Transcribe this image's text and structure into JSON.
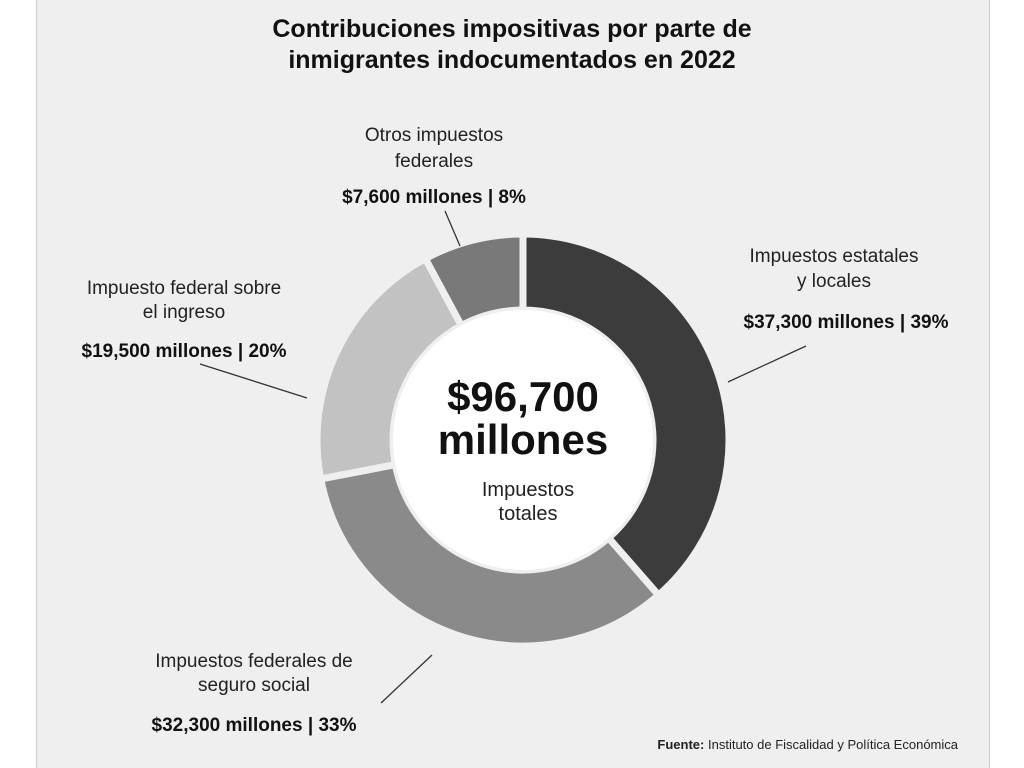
{
  "chart_data": {
    "type": "pie",
    "title_lines": [
      "Contribuciones impositivas por parte de",
      "inmigrantes indocumentados en 2022"
    ],
    "center": {
      "total_lines": [
        "$96,700",
        "millones"
      ],
      "caption_lines": [
        "Impuestos",
        "totales"
      ]
    },
    "slices": [
      {
        "name_lines": [
          "Impuestos estatales",
          "y locales"
        ],
        "value_label": "$37,300 millones | 39%",
        "value": 37300,
        "percent": 39,
        "color": "#3c3c3c"
      },
      {
        "name_lines": [
          "Impuestos federales de",
          "seguro social"
        ],
        "value_label": "$32,300 millones | 33%",
        "value": 32300,
        "percent": 33,
        "color": "#8a8a8a"
      },
      {
        "name_lines": [
          "Impuesto federal sobre",
          "el ingreso"
        ],
        "value_label": "$19,500 millones | 20%",
        "value": 19500,
        "percent": 20,
        "color": "#c2c2c2"
      },
      {
        "name_lines": [
          "Otros impuestos",
          "federales"
        ],
        "value_label": "$7,600 millones | 8%",
        "value": 7600,
        "percent": 8,
        "color": "#797979"
      }
    ],
    "source": {
      "label": "Fuente:",
      "text": "Instituto de Fiscalidad y Política Económica"
    }
  }
}
